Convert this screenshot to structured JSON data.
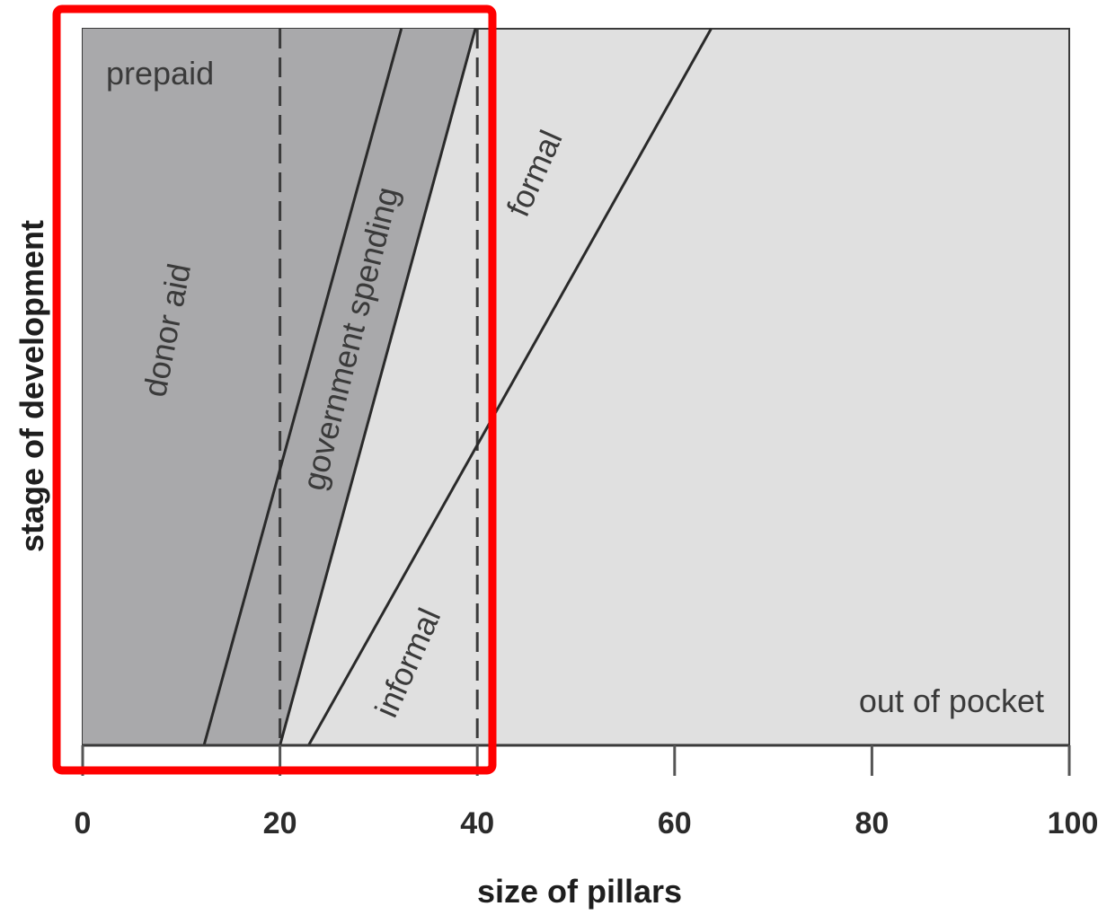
{
  "chart_data": {
    "type": "area",
    "xlabel": "size of pillars",
    "ylabel": "stage of development",
    "xlim": [
      0,
      100
    ],
    "x_ticks": [
      0,
      20,
      40,
      60,
      80,
      100
    ],
    "x_tick_labels": [
      "0",
      "20",
      "40",
      "60",
      "80",
      "100"
    ],
    "y_ticks": [],
    "grid": false,
    "legend": "none",
    "colors": {
      "prepaid_region": "#a9a9ab",
      "out_of_pocket_region": "#e0e0e0",
      "boundary_line": "#2a2a2a",
      "highlight_box": "#ff0000"
    },
    "regions": [
      {
        "label": "prepaid"
      },
      {
        "label": "out of pocket"
      }
    ],
    "lines": [
      {
        "name": "donor aid",
        "x_start": 12.3,
        "x_end": 32.3
      },
      {
        "name": "government spending",
        "x_start": 20.0,
        "x_end": 39.8
      },
      {
        "name": "formal",
        "x_start": 22.9,
        "x_end": 63.7
      }
    ],
    "reference_lines": [
      {
        "x": 20,
        "style": "dashed"
      },
      {
        "x": 40,
        "style": "dashed"
      }
    ],
    "annotations": [
      {
        "text": "prepaid"
      },
      {
        "text": "donor aid"
      },
      {
        "text": "government spending"
      },
      {
        "text": "formal"
      },
      {
        "text": "informal"
      },
      {
        "text": "out of pocket"
      }
    ],
    "highlight": {
      "x_range": [
        0,
        40
      ],
      "color": "#ff0000"
    }
  }
}
